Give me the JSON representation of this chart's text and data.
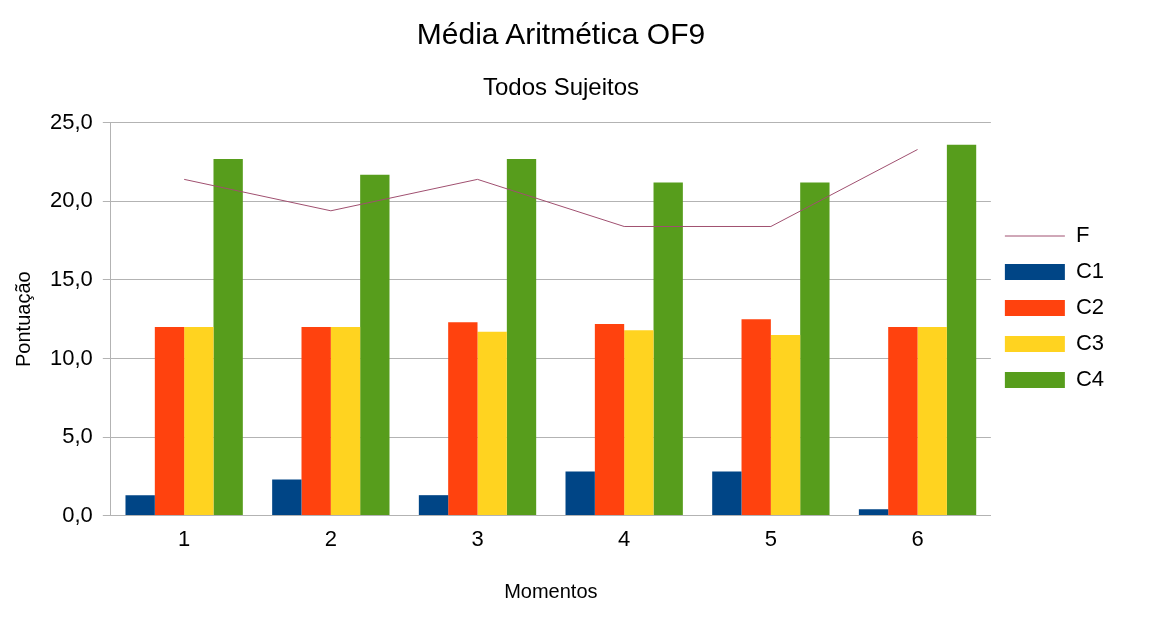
{
  "chart_data": {
    "type": "bar",
    "title": "Média Aritmética OF9",
    "subtitle": "Todos Sujeitos",
    "xlabel": "Momentos",
    "ylabel": "Pontuação",
    "categories": [
      "1",
      "2",
      "3",
      "4",
      "5",
      "6"
    ],
    "series": [
      {
        "name": "C1",
        "color": "#004586",
        "values": [
          1.3,
          2.3,
          1.3,
          2.8,
          2.8,
          0.4
        ]
      },
      {
        "name": "C2",
        "color": "#ff420e",
        "values": [
          12.0,
          12.0,
          12.3,
          12.2,
          12.5,
          12.0
        ]
      },
      {
        "name": "C3",
        "color": "#ffd320",
        "values": [
          12.0,
          12.0,
          11.7,
          11.8,
          11.5,
          12.0
        ]
      },
      {
        "name": "C4",
        "color": "#579d1c",
        "values": [
          22.7,
          21.7,
          22.7,
          21.2,
          21.2,
          23.6
        ]
      },
      {
        "name": "F",
        "type": "line",
        "color": "#a05070",
        "values": [
          21.4,
          19.4,
          21.4,
          18.4,
          18.4,
          23.3
        ]
      }
    ],
    "ylim": [
      0,
      25
    ],
    "yticks": [
      {
        "value": 0,
        "label": "0,0"
      },
      {
        "value": 5,
        "label": "5,0"
      },
      {
        "value": 10,
        "label": "10,0"
      },
      {
        "value": 15,
        "label": "15,0"
      },
      {
        "value": 20,
        "label": "20,0"
      },
      {
        "value": 25,
        "label": "25,0"
      }
    ],
    "grid": "y",
    "legend": "right",
    "marker": "none"
  }
}
